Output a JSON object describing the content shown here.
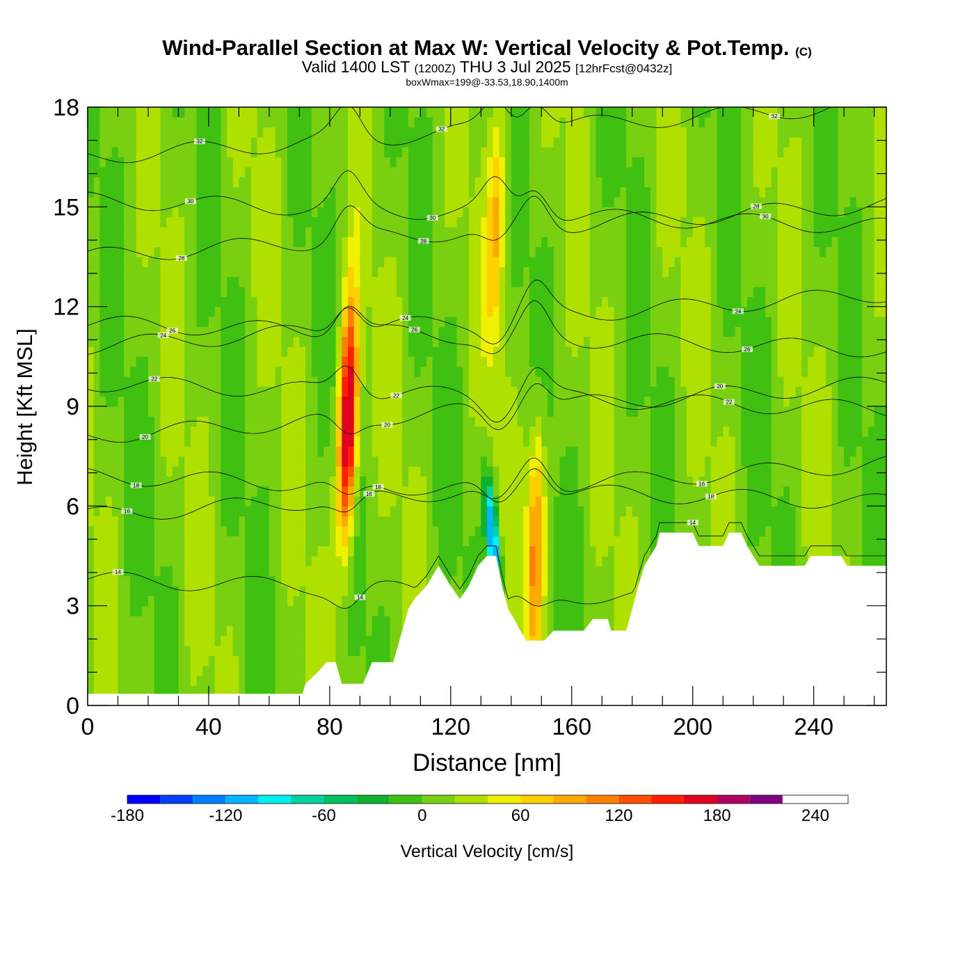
{
  "title": {
    "main": "Wind-Parallel Section at Max W: Vertical Velocity & Pot.Temp.",
    "copyright": "(C)",
    "valid_prefix": "Valid 1400 LST",
    "valid_utc": "(1200Z)",
    "valid_date": "THU 3 Jul 2025",
    "forecast": "[12hrFcst@0432z]",
    "boxwmax": "boxWmax=199@-33.53,18.90,1400m"
  },
  "chart_data": {
    "type": "heatmap",
    "xlabel": "Distance [nm]",
    "ylabel": "Height [Kft MSL]",
    "xlim": [
      0,
      264
    ],
    "ylim": [
      0,
      18
    ],
    "x_ticks": [
      0,
      40,
      80,
      120,
      160,
      200,
      240
    ],
    "y_ticks": [
      0,
      3,
      6,
      9,
      12,
      15,
      18
    ],
    "background_w": 10,
    "terrain": [
      [
        0,
        0.35
      ],
      [
        71,
        0.35
      ],
      [
        72,
        0.65
      ],
      [
        76,
        1.0
      ],
      [
        79,
        1.3
      ],
      [
        82,
        1.3
      ],
      [
        84,
        0.65
      ],
      [
        91,
        0.65
      ],
      [
        94,
        1.3
      ],
      [
        101,
        1.3
      ],
      [
        104,
        2.25
      ],
      [
        106,
        2.9
      ],
      [
        108,
        3.2
      ],
      [
        112,
        3.6
      ],
      [
        116,
        4.2
      ],
      [
        120,
        3.6
      ],
      [
        123,
        3.2
      ],
      [
        126,
        3.6
      ],
      [
        129,
        4.2
      ],
      [
        132,
        4.5
      ],
      [
        135,
        4.5
      ],
      [
        137,
        3.6
      ],
      [
        139,
        2.9
      ],
      [
        141,
        2.6
      ],
      [
        143,
        2.25
      ],
      [
        145,
        1.95
      ],
      [
        151,
        1.95
      ],
      [
        154,
        2.25
      ],
      [
        164,
        2.25
      ],
      [
        167,
        2.6
      ],
      [
        172,
        2.6
      ],
      [
        173,
        2.25
      ],
      [
        178,
        2.25
      ],
      [
        180,
        2.9
      ],
      [
        182,
        3.6
      ],
      [
        184,
        4.2
      ],
      [
        186,
        4.5
      ],
      [
        188,
        4.8
      ],
      [
        189,
        5.2
      ],
      [
        200,
        5.2
      ],
      [
        202,
        4.8
      ],
      [
        210,
        4.8
      ],
      [
        212,
        5.2
      ],
      [
        216,
        5.2
      ],
      [
        218,
        4.8
      ],
      [
        220,
        4.5
      ],
      [
        222,
        4.2
      ],
      [
        237,
        4.2
      ],
      [
        239,
        4.5
      ],
      [
        249,
        4.5
      ],
      [
        251,
        4.2
      ],
      [
        264,
        4.2
      ]
    ],
    "updrafts": [
      {
        "x": 86,
        "y": 8.5,
        "w_max": 199
      },
      {
        "x": 148,
        "y": 5.0,
        "w_max": 100
      },
      {
        "x": 135,
        "y": 14.5,
        "w_max": 70
      }
    ],
    "downdrafts": [
      {
        "x": 134,
        "y": 5.0,
        "w_min": -150
      }
    ],
    "theta_contours": [
      {
        "label": "14",
        "y0": 3.8
      },
      {
        "label": "16",
        "y0": 5.7
      },
      {
        "label": "18",
        "y0": 6.9
      },
      {
        "label": "20",
        "y0": 8.1
      },
      {
        "label": "22",
        "y0": 9.7
      },
      {
        "label": "24",
        "y0": 10.8
      },
      {
        "label": "26",
        "y0": 11.5
      },
      {
        "label": "28",
        "y0": 13.5
      },
      {
        "label": "30",
        "y0": 15.2
      },
      {
        "label": "32",
        "y0": 16.5
      }
    ],
    "colorbar": {
      "title": "Vertical Velocity [cm/s]",
      "min": -180,
      "max": 260,
      "step": 20,
      "tick_labels": [
        "-180",
        "-120",
        "-60",
        "0",
        "60",
        "120",
        "180",
        "240"
      ],
      "colors": [
        "#0000ff",
        "#0040ff",
        "#0080ff",
        "#00b4ff",
        "#00f0f0",
        "#00d2a0",
        "#00c060",
        "#10b030",
        "#40c010",
        "#78d010",
        "#b0e000",
        "#f0f000",
        "#ffd000",
        "#ffaa00",
        "#ff8000",
        "#ff5000",
        "#ff1e00",
        "#e00020",
        "#b00060",
        "#800080"
      ]
    }
  }
}
